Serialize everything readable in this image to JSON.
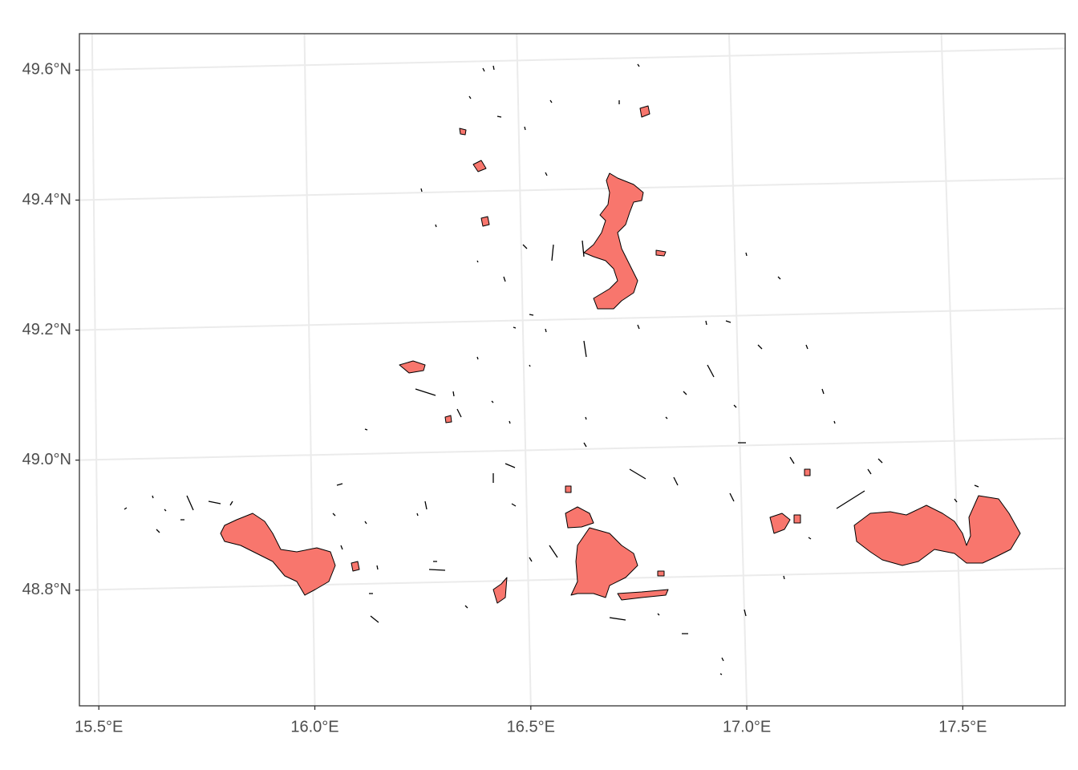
{
  "chart_data": {
    "type": "map",
    "xlim": [
      15.455,
      17.737
    ],
    "ylim": [
      48.622,
      49.656
    ],
    "xticks": [
      {
        "value": 15.5,
        "label": "15.5°E"
      },
      {
        "value": 16.0,
        "label": "16.0°E"
      },
      {
        "value": 16.5,
        "label": "16.5°E"
      },
      {
        "value": 17.0,
        "label": "17.0°E"
      },
      {
        "value": 17.5,
        "label": "17.5°E"
      }
    ],
    "yticks": [
      {
        "value": 48.8,
        "label": "48.8°N"
      },
      {
        "value": 49.0,
        "label": "49.0°N"
      },
      {
        "value": 49.2,
        "label": "49.2°N"
      },
      {
        "value": 49.4,
        "label": "49.4°N"
      },
      {
        "value": 49.6,
        "label": "49.6°N"
      }
    ],
    "grid": true,
    "color": "#f8766d"
  }
}
